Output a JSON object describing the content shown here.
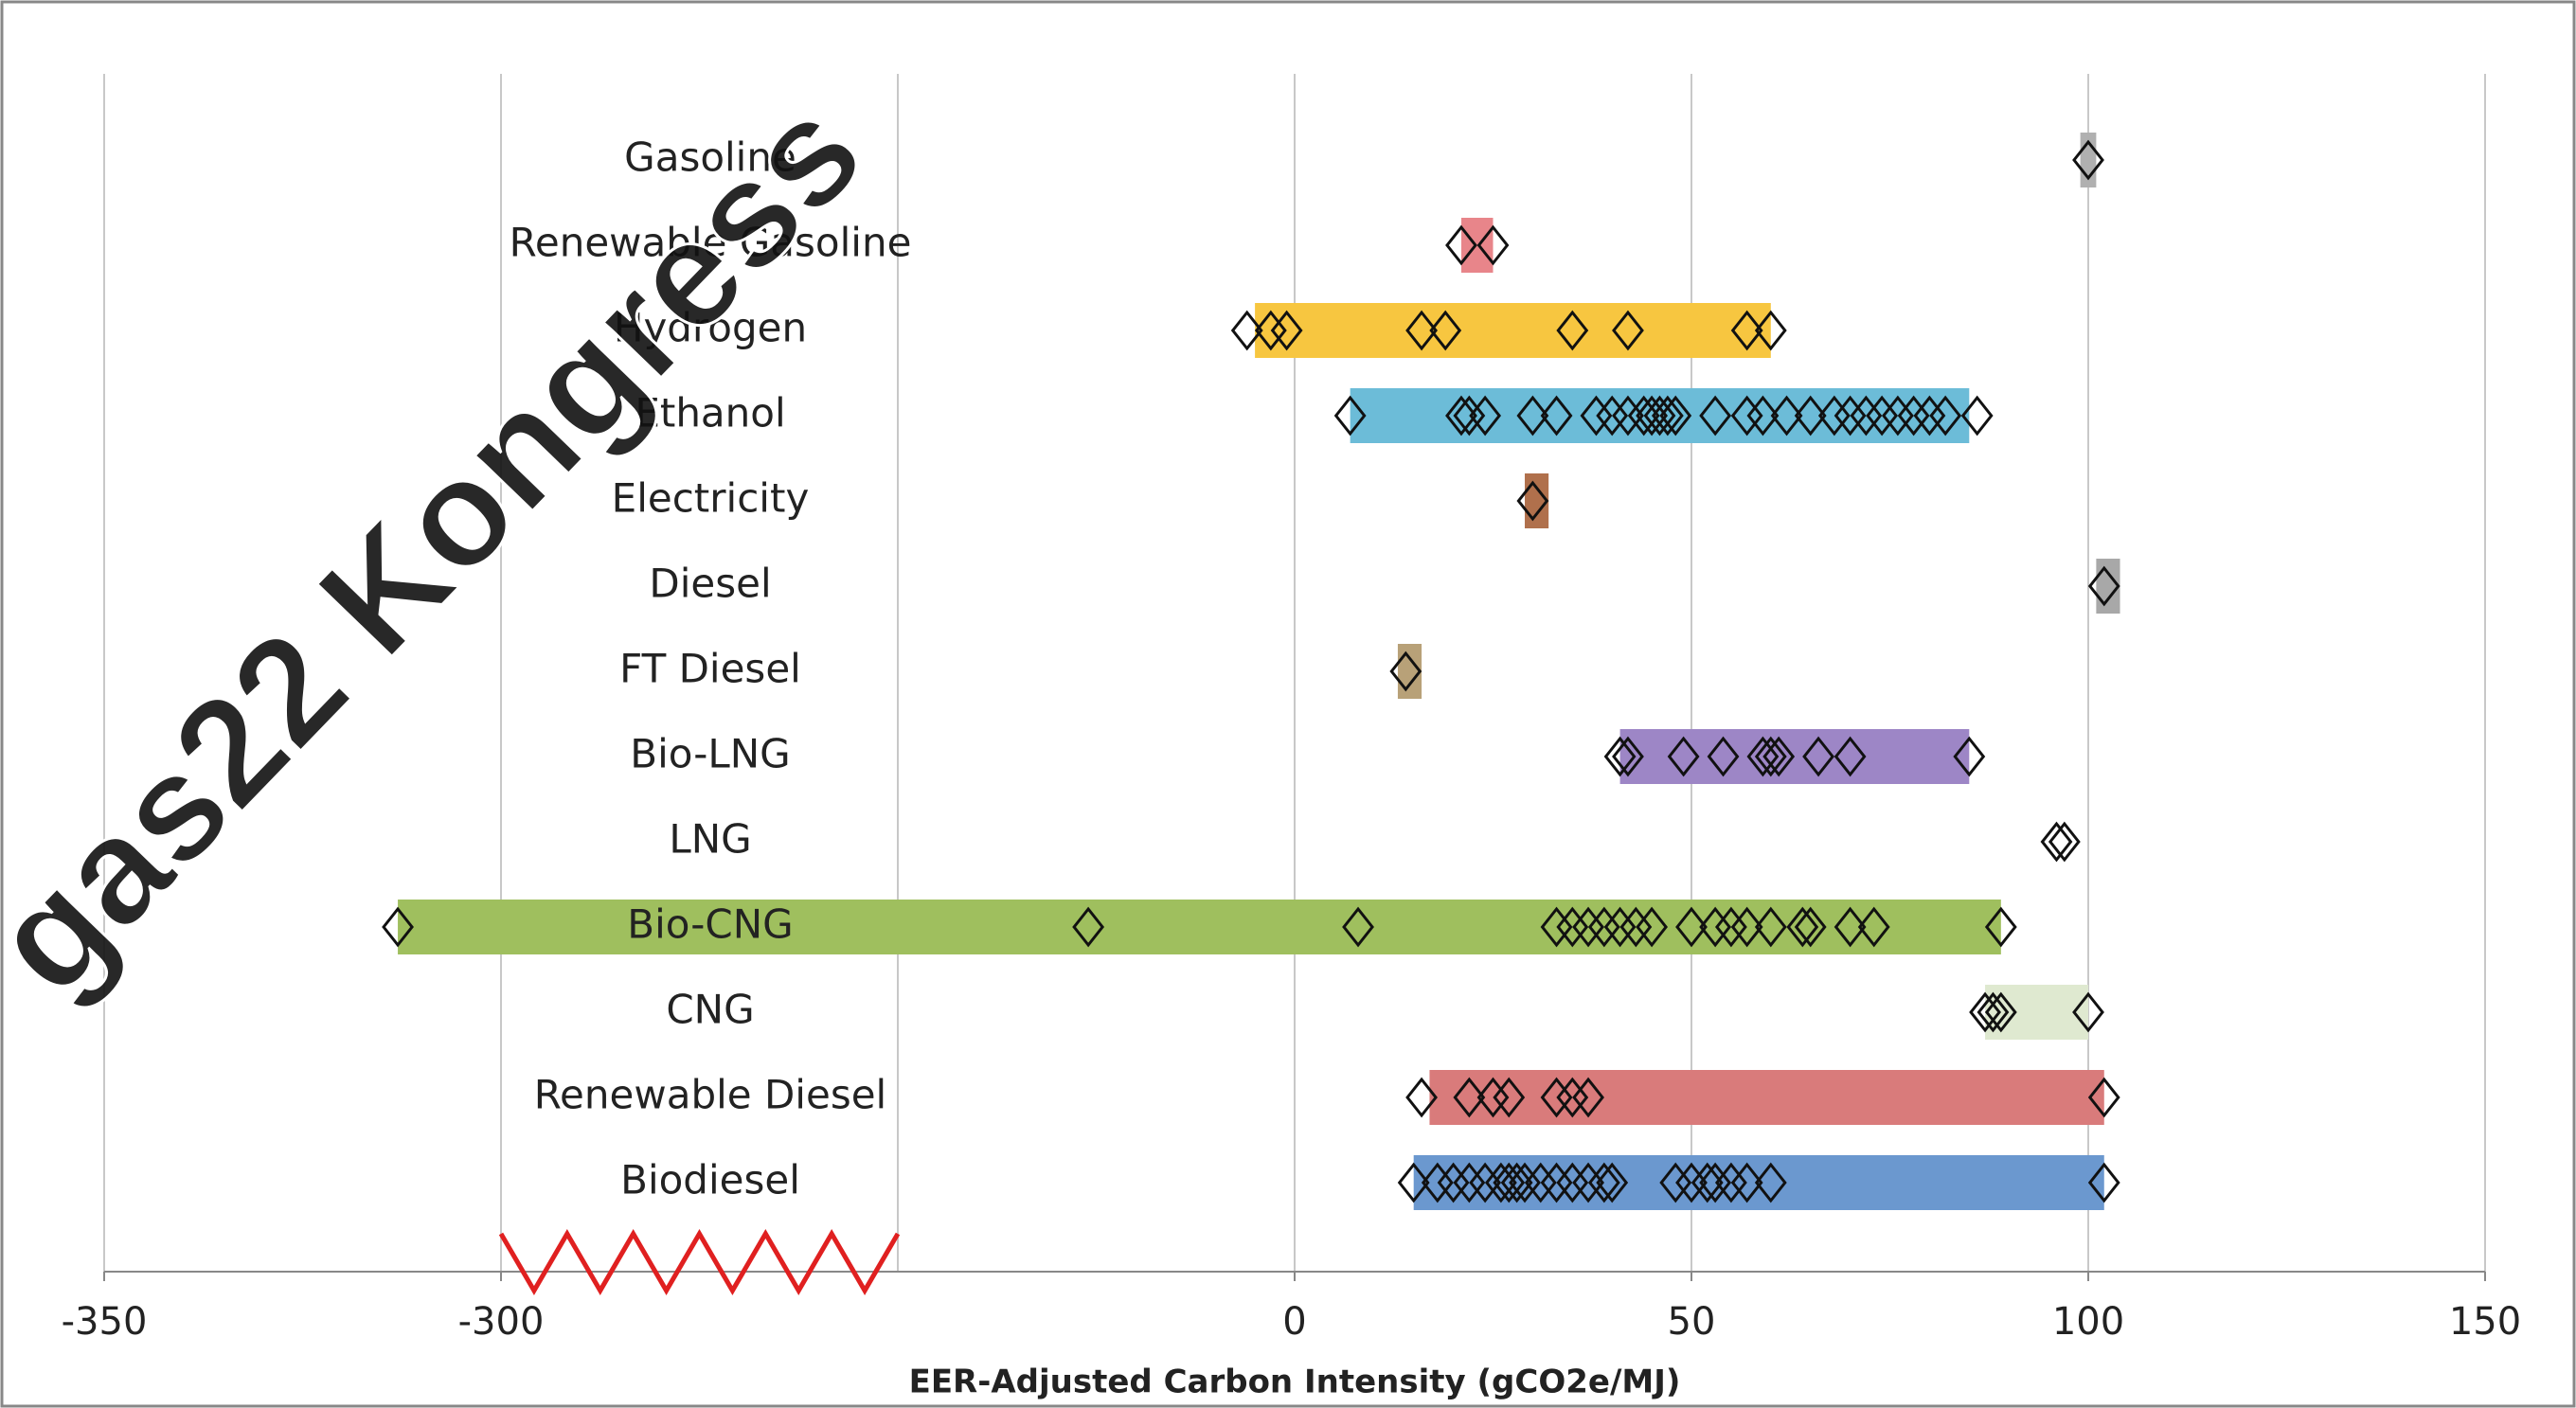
{
  "chart_data": {
    "type": "range",
    "x_label": "EER-Adjusted Carbon Intensity (gCO2e/MJ)",
    "watermark": "gas22 Kongress",
    "xlim": [
      -350,
      150
    ],
    "axis_break": [
      -300,
      -50
    ],
    "xticks": [
      -350,
      -300,
      0,
      50,
      100,
      150
    ],
    "grid": true,
    "categories": [
      "Gasoline",
      "Renewable Gasoline",
      "Hydrogen",
      "Ethanol",
      "Electricity",
      "Diesel",
      "FT Diesel",
      "Bio-LNG",
      "LNG",
      "Bio-CNG",
      "CNG",
      "Renewable Diesel",
      "Biodiesel"
    ],
    "bar_ranges": [
      [
        99,
        101
      ],
      [
        21,
        25
      ],
      [
        -5,
        60
      ],
      [
        7,
        85
      ],
      [
        29,
        32
      ],
      [
        101,
        104
      ],
      [
        13,
        16
      ],
      [
        41,
        85
      ],
      null,
      [
        -313,
        89
      ],
      [
        87,
        100
      ],
      [
        17,
        102
      ],
      [
        15,
        102
      ]
    ],
    "bar_colors": [
      "#b0b0b0",
      "#e8858a",
      "#f7c640",
      "#6cbcd8",
      "#b0704c",
      "#a8a8a8",
      "#b8a178",
      "#9d86c6",
      "#ffffff",
      "#9fbf5e",
      "#dfe9d0",
      "#d97b7b",
      "#6b98cf"
    ],
    "points": [
      [
        100
      ],
      [
        21,
        25
      ],
      [
        -6,
        -3,
        -1,
        16,
        19,
        35,
        42,
        57,
        60
      ],
      [
        7,
        21,
        22,
        24,
        30,
        33,
        38,
        40,
        42,
        44,
        45,
        46,
        47,
        48,
        53,
        57,
        59,
        62,
        65,
        68,
        70,
        72,
        74,
        76,
        78,
        80,
        82,
        86
      ],
      [
        30
      ],
      [
        102
      ],
      [
        14
      ],
      [
        41,
        42,
        49,
        54,
        59,
        60,
        61,
        66,
        70,
        85
      ],
      [
        96,
        97
      ],
      [
        -313,
        -26,
        8,
        33,
        35,
        37,
        39,
        41,
        43,
        45,
        50,
        53,
        55,
        57,
        60,
        64,
        65,
        70,
        73,
        89
      ],
      [
        87,
        88,
        89,
        100
      ],
      [
        16,
        22,
        25,
        27,
        33,
        35,
        37,
        102
      ],
      [
        15,
        18,
        20,
        22,
        24,
        26,
        27,
        28,
        29,
        31,
        33,
        35,
        37,
        39,
        40,
        48,
        50,
        52,
        53,
        55,
        57,
        60,
        102
      ]
    ]
  }
}
